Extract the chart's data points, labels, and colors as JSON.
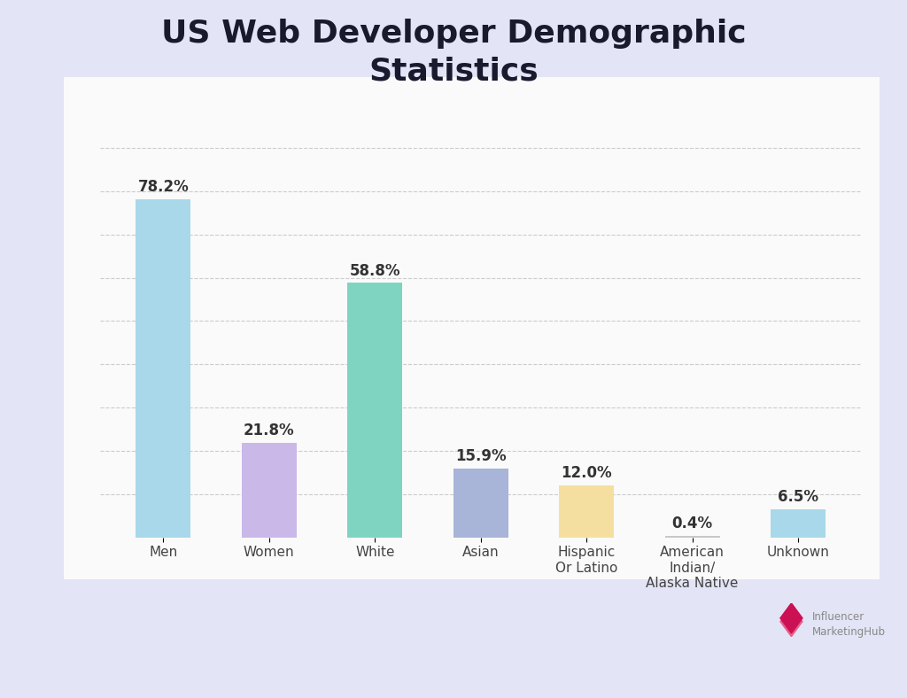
{
  "title": "US Web Developer Demographic\nStatistics",
  "categories": [
    "Men",
    "Women",
    "White",
    "Asian",
    "Hispanic\nOr Latino",
    "American\nIndian/\nAlaska Native",
    "Unknown"
  ],
  "values": [
    78.2,
    21.8,
    58.8,
    15.9,
    12.0,
    0.4,
    6.5
  ],
  "labels": [
    "78.2%",
    "21.8%",
    "58.8%",
    "15.9%",
    "12.0%",
    "0.4%",
    "6.5%"
  ],
  "bar_colors": [
    "#A8D8EA",
    "#C9B8E8",
    "#7FD4C1",
    "#A8B4D8",
    "#F5DFA0",
    "#C8C8C8",
    "#A8D8EA"
  ],
  "background_outer": "#E3E4F5",
  "background_inner": "#FAFAFA",
  "ylim": [
    0,
    100
  ],
  "grid_lines": [
    10,
    20,
    30,
    40,
    50,
    60,
    70,
    80,
    90
  ],
  "title_fontsize": 26,
  "label_fontsize": 12,
  "tick_fontsize": 11,
  "bar_width": 0.52
}
